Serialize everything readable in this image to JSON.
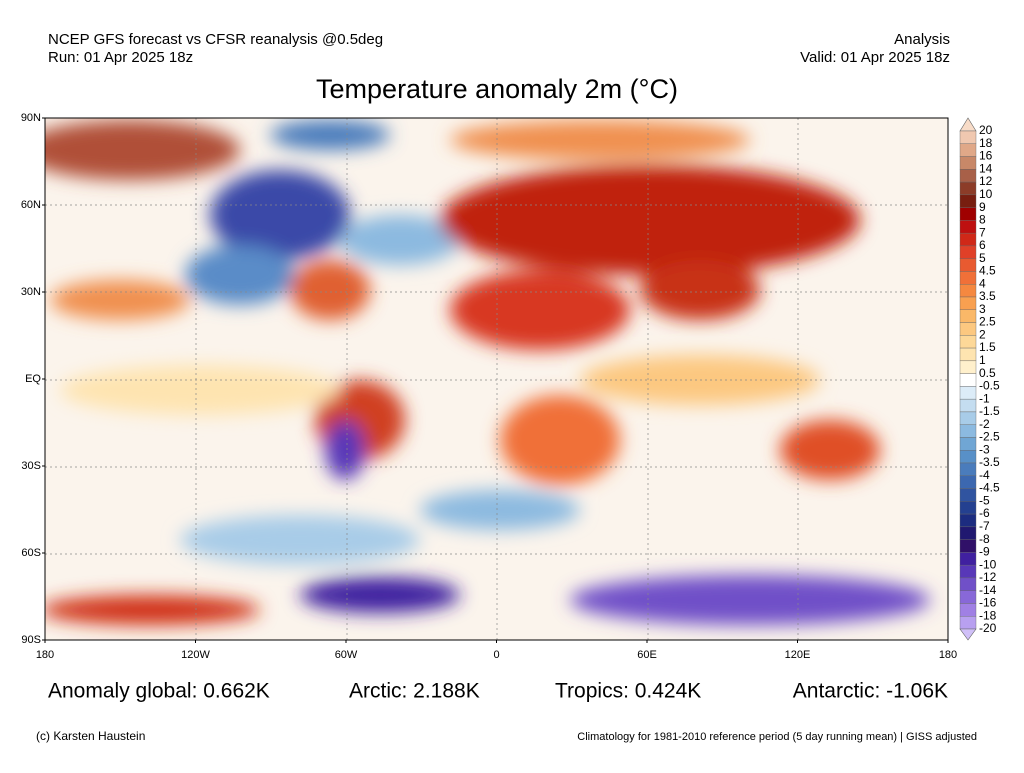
{
  "header": {
    "left": [
      "NCEP GFS forecast vs CFSR reanalysis @0.5deg",
      "Run: 01 Apr 2025 18z"
    ],
    "right": [
      "Analysis",
      "Valid: 01 Apr 2025 18z"
    ]
  },
  "title": "Temperature anomaly 2m (°C)",
  "map": {
    "lat_labels": [
      "90N",
      "60N",
      "30N",
      "EQ",
      "30S",
      "60S",
      "90S"
    ],
    "lon_labels": [
      "180",
      "120W",
      "60W",
      "0",
      "60E",
      "120E",
      "180"
    ]
  },
  "colorbar": {
    "labels": [
      "20",
      "18",
      "16",
      "14",
      "12",
      "10",
      "9",
      "8",
      "7",
      "6",
      "5",
      "4.5",
      "4",
      "3.5",
      "3",
      "2.5",
      "2",
      "1.5",
      "1",
      "0.5",
      "-0.5",
      "-1",
      "-1.5",
      "-2",
      "-2.5",
      "-3",
      "-3.5",
      "-4",
      "-4.5",
      "-5",
      "-6",
      "-7",
      "-8",
      "-9",
      "-10",
      "-12",
      "-14",
      "-16",
      "-18",
      "-20"
    ],
    "colors": [
      "#f8dcc8",
      "#f0c8b0",
      "#e0a888",
      "#c88868",
      "#a86048",
      "#8c3c28",
      "#781e10",
      "#a00000",
      "#be1010",
      "#d02818",
      "#e04028",
      "#e85a30",
      "#f07038",
      "#f58840",
      "#f8a050",
      "#fab868",
      "#fcc880",
      "#fdd898",
      "#fee4b0",
      "#fff0cc",
      "#ffffff",
      "#dcecf8",
      "#c4ddf0",
      "#a8cce8",
      "#8cbae0",
      "#70a6d4",
      "#5890c8",
      "#4a7cbc",
      "#3c68b0",
      "#3054a0",
      "#244090",
      "#1c2c80",
      "#201870",
      "#301068",
      "#4020a0",
      "#5838b8",
      "#7050c8",
      "#8868d8",
      "#a080e4",
      "#b8a0f0",
      "#d0c0f8"
    ]
  },
  "stats": [
    "Anomaly global: 0.662K",
    "Arctic: 2.188K",
    "Tropics: 0.424K",
    "Antarctic: -1.06K"
  ],
  "footer": {
    "left": "(c) Karsten Haustein",
    "right": "Climatology for 1981-2010 reference period (5 day running mean) | GISS adjusted"
  }
}
